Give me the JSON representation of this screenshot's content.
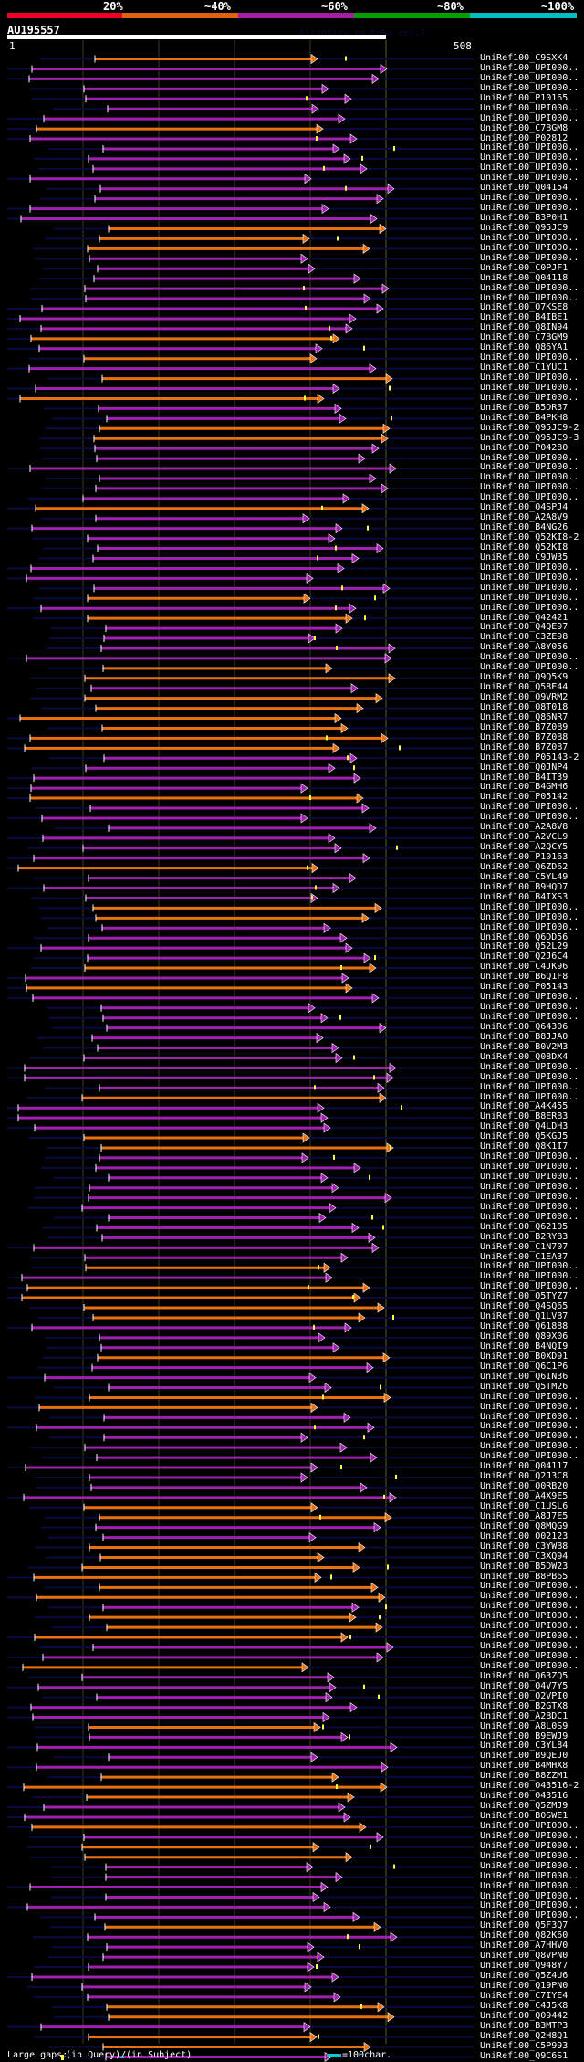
{
  "scale": {
    "labels": [
      "20%",
      "~40%",
      "~60%",
      "~80%",
      "~100%"
    ],
    "colors": [
      "#ee0022",
      "#e06010",
      "#a020a0",
      "#00a000",
      "#00c0c0"
    ]
  },
  "query": {
    "name": "AU195557",
    "start": "1",
    "end": "508",
    "length": 508,
    "watermark": "AlignView.pm Beta rel.7"
  },
  "footer": {
    "large_gaps": "Large gaps:",
    "in_query": "(in Query)/",
    "in_subject": "(in Subject)",
    "scale_legend": "=100char."
  },
  "hit_colors": {
    "orange": "#e87010",
    "purple": "#a020b0",
    "background": "#0a0a40"
  },
  "hits": [
    {
      "label": "UniRef100_C9SXK4",
      "c": "o"
    },
    {
      "label": "UniRef100_UPI000..",
      "c": "p"
    },
    {
      "label": "UniRef100_UPI000..",
      "c": "p"
    },
    {
      "label": "UniRef100_UPI000..",
      "c": "p"
    },
    {
      "label": "UniRef100_P10165",
      "c": "p"
    },
    {
      "label": "UniRef100_UPI000..",
      "c": "p"
    },
    {
      "label": "UniRef100_UPI000..",
      "c": "p"
    },
    {
      "label": "UniRef100_C7BGM8",
      "c": "o"
    },
    {
      "label": "UniRef100_P02812",
      "c": "p"
    },
    {
      "label": "UniRef100_UPI000..",
      "c": "p"
    },
    {
      "label": "UniRef100_UPI000..",
      "c": "p"
    },
    {
      "label": "UniRef100_UPI000..",
      "c": "p"
    },
    {
      "label": "UniRef100_UPI000..",
      "c": "p"
    },
    {
      "label": "UniRef100_Q04154",
      "c": "p"
    },
    {
      "label": "UniRef100_UPI000..",
      "c": "p"
    },
    {
      "label": "UniRef100_UPI000..",
      "c": "p"
    },
    {
      "label": "UniRef100_B3P0H1",
      "c": "p"
    },
    {
      "label": "UniRef100_Q95JC9",
      "c": "o"
    },
    {
      "label": "UniRef100_UPI000..",
      "c": "o"
    },
    {
      "label": "UniRef100_UPI000..",
      "c": "o"
    },
    {
      "label": "UniRef100_UPI000..",
      "c": "p"
    },
    {
      "label": "UniRef100_C0PJF1",
      "c": "p"
    },
    {
      "label": "UniRef100_Q04118",
      "c": "p"
    },
    {
      "label": "UniRef100_UPI000..",
      "c": "p"
    },
    {
      "label": "UniRef100_UPI000..",
      "c": "p"
    },
    {
      "label": "UniRef100_Q7KSE8",
      "c": "p"
    },
    {
      "label": "UniRef100_B4IBE1",
      "c": "p"
    },
    {
      "label": "UniRef100_Q8IN94",
      "c": "p"
    },
    {
      "label": "UniRef100_C7BGM9",
      "c": "o"
    },
    {
      "label": "UniRef100_Q86YA1",
      "c": "p"
    },
    {
      "label": "UniRef100_UPI000..",
      "c": "o"
    },
    {
      "label": "UniRef100_C1YUC1",
      "c": "p"
    },
    {
      "label": "UniRef100_UPI000..",
      "c": "o"
    },
    {
      "label": "UniRef100_UPI000..",
      "c": "p"
    },
    {
      "label": "UniRef100_UPI000..",
      "c": "o"
    },
    {
      "label": "UniRef100_B5DR37",
      "c": "p"
    },
    {
      "label": "UniRef100_B4PKH8",
      "c": "p"
    },
    {
      "label": "UniRef100_Q95JC9-2",
      "c": "o"
    },
    {
      "label": "UniRef100_Q95JC9-3",
      "c": "o"
    },
    {
      "label": "UniRef100_P04280",
      "c": "p"
    },
    {
      "label": "UniRef100_UPI000..",
      "c": "p"
    },
    {
      "label": "UniRef100_UPI000..",
      "c": "p"
    },
    {
      "label": "UniRef100_UPI000..",
      "c": "p"
    },
    {
      "label": "UniRef100_UPI000..",
      "c": "p"
    },
    {
      "label": "UniRef100_UPI000..",
      "c": "p"
    },
    {
      "label": "UniRef100_Q4SPJ4",
      "c": "o"
    },
    {
      "label": "UniRef100_A2A8V9",
      "c": "p"
    },
    {
      "label": "UniRef100_B4NG26",
      "c": "p"
    },
    {
      "label": "UniRef100_Q52KI8-2",
      "c": "p"
    },
    {
      "label": "UniRef100_Q52KI8",
      "c": "p"
    },
    {
      "label": "UniRef100_C9JW35",
      "c": "p"
    },
    {
      "label": "UniRef100_UPI000..",
      "c": "p"
    },
    {
      "label": "UniRef100_UPI000..",
      "c": "p"
    },
    {
      "label": "UniRef100_UPI000..",
      "c": "p"
    },
    {
      "label": "UniRef100_UPI000..",
      "c": "o"
    },
    {
      "label": "UniRef100_UPI000..",
      "c": "p"
    },
    {
      "label": "UniRef100_Q42421",
      "c": "o"
    },
    {
      "label": "UniRef100_Q4QE97",
      "c": "p"
    },
    {
      "label": "UniRef100_C3ZE98",
      "c": "p"
    },
    {
      "label": "UniRef100_A8Y056",
      "c": "p"
    },
    {
      "label": "UniRef100_UPI000..",
      "c": "p"
    },
    {
      "label": "UniRef100_UPI000..",
      "c": "o"
    },
    {
      "label": "UniRef100_Q9Q5K9",
      "c": "o"
    },
    {
      "label": "UniRef100_Q58E44",
      "c": "p"
    },
    {
      "label": "UniRef100_Q9VRM2",
      "c": "o"
    },
    {
      "label": "UniRef100_Q8T018",
      "c": "o"
    },
    {
      "label": "UniRef100_Q86NR7",
      "c": "o"
    },
    {
      "label": "UniRef100_B7Z0B9",
      "c": "o"
    },
    {
      "label": "UniRef100_B7Z0B8",
      "c": "o"
    },
    {
      "label": "UniRef100_B7Z0B7",
      "c": "o"
    },
    {
      "label": "UniRef100_P05143-2",
      "c": "p"
    },
    {
      "label": "UniRef100_Q0JNP4",
      "c": "p"
    },
    {
      "label": "UniRef100_B4IT39",
      "c": "p"
    },
    {
      "label": "UniRef100_B4GMH6",
      "c": "p"
    },
    {
      "label": "UniRef100_P05142",
      "c": "o"
    },
    {
      "label": "UniRef100_UPI000..",
      "c": "p"
    },
    {
      "label": "UniRef100_UPI000..",
      "c": "p"
    },
    {
      "label": "UniRef100_A2A8V8",
      "c": "p"
    },
    {
      "label": "UniRef100_A2VCL9",
      "c": "p"
    },
    {
      "label": "UniRef100_A2QCY5",
      "c": "p"
    },
    {
      "label": "UniRef100_P10163",
      "c": "p"
    },
    {
      "label": "UniRef100_Q6ZD62",
      "c": "o"
    },
    {
      "label": "UniRef100_C5YL49",
      "c": "p"
    },
    {
      "label": "UniRef100_B9HQD7",
      "c": "p"
    },
    {
      "label": "UniRef100_B4IXS3",
      "c": "p"
    },
    {
      "label": "UniRef100_UPI000..",
      "c": "o"
    },
    {
      "label": "UniRef100_UPI000..",
      "c": "o"
    },
    {
      "label": "UniRef100_UPI000..",
      "c": "p"
    },
    {
      "label": "UniRef100_Q6DD56",
      "c": "p"
    },
    {
      "label": "UniRef100_Q52L29",
      "c": "p"
    },
    {
      "label": "UniRef100_Q2J6C4",
      "c": "p"
    },
    {
      "label": "UniRef100_C4JK96",
      "c": "o"
    },
    {
      "label": "UniRef100_B6Q1F8",
      "c": "p"
    },
    {
      "label": "UniRef100_P05143",
      "c": "o"
    },
    {
      "label": "UniRef100_UPI000..",
      "c": "p"
    },
    {
      "label": "UniRef100_UPI000..",
      "c": "p"
    },
    {
      "label": "UniRef100_UPI000..",
      "c": "p"
    },
    {
      "label": "UniRef100_Q64306",
      "c": "p"
    },
    {
      "label": "UniRef100_B8JJA0",
      "c": "p"
    },
    {
      "label": "UniRef100_B0V2M3",
      "c": "p"
    },
    {
      "label": "UniRef100_Q08DX4",
      "c": "p"
    },
    {
      "label": "UniRef100_UPI000..",
      "c": "p"
    },
    {
      "label": "UniRef100_UPI000..",
      "c": "p"
    },
    {
      "label": "UniRef100_UPI000..",
      "c": "p"
    },
    {
      "label": "UniRef100_UPI000..",
      "c": "o"
    },
    {
      "label": "UniRef100_A4K455",
      "c": "p"
    },
    {
      "label": "UniRef100_B8ERB3",
      "c": "p"
    },
    {
      "label": "UniRef100_Q4LDH3",
      "c": "p"
    },
    {
      "label": "UniRef100_Q5KGJ5",
      "c": "o"
    },
    {
      "label": "UniRef100_Q8K1I7",
      "c": "o"
    },
    {
      "label": "UniRef100_UPI000..",
      "c": "p"
    },
    {
      "label": "UniRef100_UPI000..",
      "c": "p"
    },
    {
      "label": "UniRef100_UPI000..",
      "c": "p"
    },
    {
      "label": "UniRef100_UPI000..",
      "c": "p"
    },
    {
      "label": "UniRef100_UPI000..",
      "c": "p"
    },
    {
      "label": "UniRef100_UPI000..",
      "c": "p"
    },
    {
      "label": "UniRef100_UPI000..",
      "c": "p"
    },
    {
      "label": "UniRef100_Q62105",
      "c": "p"
    },
    {
      "label": "UniRef100_B2RYB3",
      "c": "p"
    },
    {
      "label": "UniRef100_C1N707",
      "c": "p"
    },
    {
      "label": "UniRef100_C1EA37",
      "c": "p"
    },
    {
      "label": "UniRef100_UPI000..",
      "c": "o"
    },
    {
      "label": "UniRef100_UPI000..",
      "c": "p"
    },
    {
      "label": "UniRef100_UPI000..",
      "c": "o"
    },
    {
      "label": "UniRef100_Q5TYZ7",
      "c": "o"
    },
    {
      "label": "UniRef100_Q4SQ65",
      "c": "o"
    },
    {
      "label": "UniRef100_Q1LVB7",
      "c": "o"
    },
    {
      "label": "UniRef100_Q61888",
      "c": "p"
    },
    {
      "label": "UniRef100_Q89X06",
      "c": "p"
    },
    {
      "label": "UniRef100_B4NQI9",
      "c": "p"
    },
    {
      "label": "UniRef100_B0XD91",
      "c": "o"
    },
    {
      "label": "UniRef100_Q6C1P6",
      "c": "p"
    },
    {
      "label": "UniRef100_Q6IN36",
      "c": "p"
    },
    {
      "label": "UniRef100_Q5TM26",
      "c": "p"
    },
    {
      "label": "UniRef100_UPI000..",
      "c": "o"
    },
    {
      "label": "UniRef100_UPI000..",
      "c": "o"
    },
    {
      "label": "UniRef100_UPI000..",
      "c": "p"
    },
    {
      "label": "UniRef100_UPI000..",
      "c": "p"
    },
    {
      "label": "UniRef100_UPI000..",
      "c": "p"
    },
    {
      "label": "UniRef100_UPI000..",
      "c": "p"
    },
    {
      "label": "UniRef100_UPI000..",
      "c": "p"
    },
    {
      "label": "UniRef100_Q04117",
      "c": "p"
    },
    {
      "label": "UniRef100_Q2J3C8",
      "c": "p"
    },
    {
      "label": "UniRef100_Q0RB20",
      "c": "p"
    },
    {
      "label": "UniRef100_A4X9E5",
      "c": "p"
    },
    {
      "label": "UniRef100_C1USL6",
      "c": "o"
    },
    {
      "label": "UniRef100_A8J7E5",
      "c": "o"
    },
    {
      "label": "UniRef100_Q8MQG9",
      "c": "p"
    },
    {
      "label": "UniRef100_O02123",
      "c": "p"
    },
    {
      "label": "UniRef100_C3YWB8",
      "c": "o"
    },
    {
      "label": "UniRef100_C3XQ94",
      "c": "o"
    },
    {
      "label": "UniRef100_B5DW23",
      "c": "o"
    },
    {
      "label": "UniRef100_B8PB65",
      "c": "o"
    },
    {
      "label": "UniRef100_UPI000..",
      "c": "o"
    },
    {
      "label": "UniRef100_UPI000..",
      "c": "o"
    },
    {
      "label": "UniRef100_UPI000..",
      "c": "p"
    },
    {
      "label": "UniRef100_UPI000..",
      "c": "o"
    },
    {
      "label": "UniRef100_UPI000..",
      "c": "o"
    },
    {
      "label": "UniRef100_UPI000..",
      "c": "o"
    },
    {
      "label": "UniRef100_UPI000..",
      "c": "p"
    },
    {
      "label": "UniRef100_UPI000..",
      "c": "p"
    },
    {
      "label": "UniRef100_UPI000..",
      "c": "o"
    },
    {
      "label": "UniRef100_Q63ZQ5",
      "c": "p"
    },
    {
      "label": "UniRef100_Q4V7Y5",
      "c": "p"
    },
    {
      "label": "UniRef100_Q2VPI0",
      "c": "p"
    },
    {
      "label": "UniRef100_B2GTX8",
      "c": "p"
    },
    {
      "label": "UniRef100_A2BDC1",
      "c": "p"
    },
    {
      "label": "UniRef100_A8L0S9",
      "c": "o"
    },
    {
      "label": "UniRef100_B9EWJ9",
      "c": "p"
    },
    {
      "label": "UniRef100_C3YL84",
      "c": "p"
    },
    {
      "label": "UniRef100_B9QEJ0",
      "c": "p"
    },
    {
      "label": "UniRef100_B4MHX8",
      "c": "p"
    },
    {
      "label": "UniRef100_B8ZZM1",
      "c": "o"
    },
    {
      "label": "UniRef100_O43516-2",
      "c": "o"
    },
    {
      "label": "UniRef100_O43516",
      "c": "o"
    },
    {
      "label": "UniRef100_Q5ZMJ9",
      "c": "p"
    },
    {
      "label": "UniRef100_B0SWE1",
      "c": "p"
    },
    {
      "label": "UniRef100_UPI000..",
      "c": "o"
    },
    {
      "label": "UniRef100_UPI000..",
      "c": "p"
    },
    {
      "label": "UniRef100_UPI000..",
      "c": "o"
    },
    {
      "label": "UniRef100_UPI000..",
      "c": "o"
    },
    {
      "label": "UniRef100_UPI000..",
      "c": "p"
    },
    {
      "label": "UniRef100_UPI000..",
      "c": "p"
    },
    {
      "label": "UniRef100_UPI000..",
      "c": "p"
    },
    {
      "label": "UniRef100_UPI000..",
      "c": "p"
    },
    {
      "label": "UniRef100_UPI000..",
      "c": "p"
    },
    {
      "label": "UniRef100_UPI000..",
      "c": "p"
    },
    {
      "label": "UniRef100_Q5F3Q7",
      "c": "o"
    },
    {
      "label": "UniRef100_Q82K60",
      "c": "p"
    },
    {
      "label": "UniRef100_A7HHV0",
      "c": "p"
    },
    {
      "label": "UniRef100_Q8VPN0",
      "c": "p"
    },
    {
      "label": "UniRef100_Q948Y7",
      "c": "p"
    },
    {
      "label": "UniRef100_Q5Z4U6",
      "c": "p"
    },
    {
      "label": "UniRef100_Q19PN0",
      "c": "p"
    },
    {
      "label": "UniRef100_C7IYE4",
      "c": "p"
    },
    {
      "label": "UniRef100_C4J5K8",
      "c": "o"
    },
    {
      "label": "UniRef100_Q09442",
      "c": "o"
    },
    {
      "label": "UniRef100_B3MTP3",
      "c": "p"
    },
    {
      "label": "UniRef100_Q2H8Q1",
      "c": "o"
    },
    {
      "label": "UniRef100_C5P993",
      "c": "o"
    },
    {
      "label": "UniRef100_Q9C6S1",
      "c": "p"
    }
  ]
}
